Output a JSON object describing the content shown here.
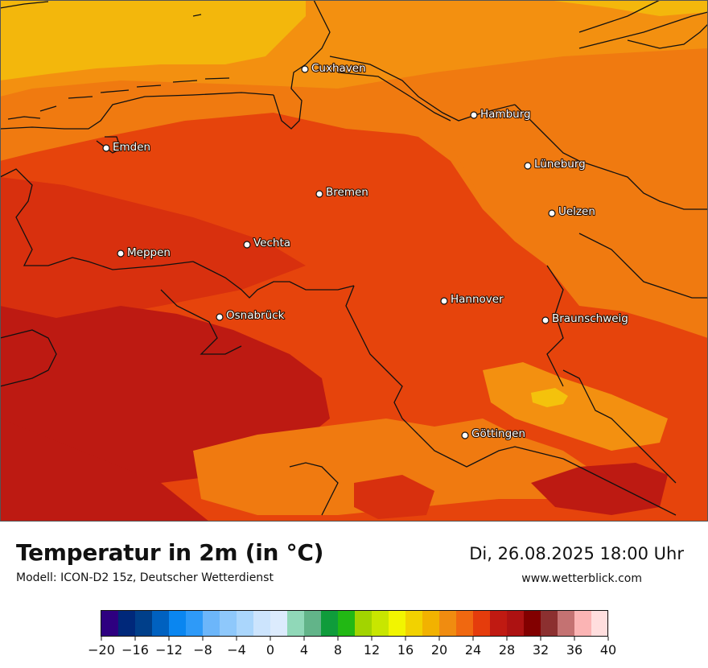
{
  "title": "Temperatur in 2m (in °C)",
  "subtitle": "Modell: ICON-D2 15z, Deutscher Wetterdienst",
  "datetime": "Di, 26.08.2025 18:00 Uhr",
  "website": "www.wetterblick.com",
  "cities": [
    {
      "name": "Cuxhaven"
    },
    {
      "name": "Hamburg"
    },
    {
      "name": "Emden"
    },
    {
      "name": "Lüneburg"
    },
    {
      "name": "Bremen"
    },
    {
      "name": "Uelzen"
    },
    {
      "name": "Vechta"
    },
    {
      "name": "Meppen"
    },
    {
      "name": "Hannover"
    },
    {
      "name": "Osnabrück"
    },
    {
      "name": "Braunschweig"
    },
    {
      "name": "Göttingen"
    }
  ],
  "legend": {
    "ticks": [
      "−20",
      "−16",
      "−12",
      "−8",
      "−4",
      "0",
      "4",
      "8",
      "12",
      "16",
      "20",
      "24",
      "28",
      "32",
      "36",
      "40"
    ],
    "colors": [
      "#2e0080",
      "#00287a",
      "#003f8a",
      "#0061c0",
      "#0a86f0",
      "#2e9af8",
      "#6cb6fa",
      "#8ec8fb",
      "#aad6fc",
      "#cce4fd",
      "#dcebfd",
      "#90d8b8",
      "#62b489",
      "#0f9c3b",
      "#22b814",
      "#a2d400",
      "#c8e600",
      "#f2f500",
      "#f2d200",
      "#f2b200",
      "#f08c10",
      "#f06810",
      "#e53c0c",
      "#c01a12",
      "#ad1212",
      "#820000",
      "#8c3030",
      "#c47272",
      "#fbb4b4",
      "#ffdede"
    ]
  },
  "map_colors": {
    "yellow": "#f3b70c",
    "light_orange": "#f39010",
    "orange": "#f07a10",
    "red_orange": "#e6440c",
    "red": "#d8300e",
    "dark_red": "#bd1a12",
    "darker_red": "#ad1212",
    "hot_yellow": "#f4c20c",
    "border": "#111111"
  }
}
